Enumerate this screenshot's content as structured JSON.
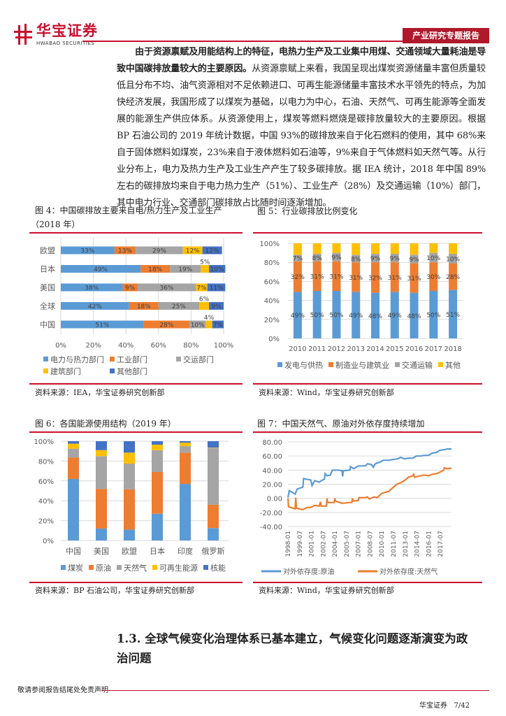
{
  "header": {
    "logo_cn": "华宝证券",
    "logo_en": "HWABAO SECURITIES",
    "report_type": "产业研究专题报告"
  },
  "body": {
    "bold_lead": "由于资源禀赋及用能结构上的特征，电热力生产及工业集中用煤、交通领域大量耗油是导致中国碳排放量较大的主要原因。",
    "paragraph": "从资源禀赋上来看，我国呈现出煤炭资源储量丰富但质量较低且分布不均、油气资源相对不足依赖进口、可再生能源储量丰富技术水平领先的特点，为加快经济发展，我国形成了以煤炭为基础，以电力为中心，石油、天然气、可再生能源等全面发展的能源生产供应体系。从资源使用上，煤炭等燃料燃烧是碳排放量较大的主要原因。根据 BP 石油公司的 2019 年统计数据，中国 93%的碳排放来自于化石燃料的使用，其中 68%来自于固体燃料如煤炭，23%来自于液体燃料如石油等，9%来自于气体燃料如天然气等。从行业分布上，电力及热力生产及工业生产产生了较多碳排放。据 IEA 统计，2018 年中国 89%左右的碳排放均来自于电力热力生产（51%）、工业生产（28%）及交通运输（10%）部门，其中电力行业、交通部门碳排放占比随时间逐渐增加。"
  },
  "figures": {
    "fig4": {
      "title_line1": "图  4：中国碳排放主要来自电/热力生产及工业生产",
      "title_line2": "（2018 年）",
      "source": "资料来源：IEA，华宝证券研究创新部"
    },
    "fig5": {
      "title": "图 5：行业碳排放比例变化",
      "source": "资料来源：Wind，华宝证券研究创新部"
    },
    "fig6": {
      "title": "图 6：各国能源使用结构（2019 年）",
      "source": "资料来源：BP 石油公司，华宝证券研究创新部"
    },
    "fig7": {
      "title": "图 7：中国天然气、原油对外依存度持续增加",
      "source": "资料来源：Wind，华宝证券研究创新部"
    }
  },
  "chart_data": [
    {
      "type": "bar",
      "orientation": "horizontal",
      "stacked": true,
      "categories": [
        "欧盟",
        "日本",
        "美国",
        "全球",
        "中国"
      ],
      "xlim": [
        0,
        100
      ],
      "xticks": [
        "0%",
        "20%",
        "40%",
        "60%",
        "80%",
        "100%"
      ],
      "legend_position": "bottom",
      "grid": true,
      "series": [
        {
          "name": "电力与热力部门",
          "color": "#5b9bd5",
          "values": [
            33,
            49,
            38,
            42,
            51
          ]
        },
        {
          "name": "工业部门",
          "color": "#ed7d31",
          "values": [
            13,
            18,
            9,
            18,
            28
          ]
        },
        {
          "name": "交运部门",
          "color": "#a5a5a5",
          "values": [
            29,
            19,
            36,
            25,
            10
          ]
        },
        {
          "name": "建筑部门",
          "color": "#ffc000",
          "values": [
            12,
            5,
            7,
            6,
            4
          ]
        },
        {
          "name": "其他部门",
          "color": "#4472c4",
          "values": [
            12,
            10,
            11,
            9,
            7
          ]
        }
      ]
    },
    {
      "type": "bar",
      "stacked": true,
      "categories": [
        "2010",
        "2011",
        "2012",
        "2013",
        "2014",
        "2015",
        "2016",
        "2017",
        "2018"
      ],
      "ylim": [
        0,
        100
      ],
      "yticks": [
        "0%",
        "20%",
        "40%",
        "60%",
        "80%",
        "100%"
      ],
      "legend_position": "bottom",
      "grid": true,
      "series": [
        {
          "name": "发电与供热",
          "color": "#5b9bd5",
          "values": [
            49,
            50,
            50,
            49,
            48,
            49,
            48,
            50,
            51
          ],
          "labeled": true
        },
        {
          "name": "制造业与建筑业",
          "color": "#ed7d31",
          "values": [
            32,
            31,
            31,
            31,
            32,
            31,
            31,
            30,
            28
          ],
          "labeled": true
        },
        {
          "name": "交通运输",
          "color": "#a5a5a5",
          "values": [
            7,
            8,
            9,
            8,
            9,
            9,
            9,
            10,
            10
          ],
          "labeled": true
        },
        {
          "name": "其他",
          "color": "#ffc000",
          "values": [
            12,
            11,
            10,
            12,
            11,
            11,
            12,
            10,
            11
          ],
          "labeled": false
        }
      ]
    },
    {
      "type": "bar",
      "stacked": true,
      "categories": [
        "中国",
        "美国",
        "欧盟",
        "日本",
        "印度",
        "俄罗斯"
      ],
      "ylim": [
        0,
        100
      ],
      "yticks": [
        "0%",
        "20%",
        "40%",
        "60%",
        "80%",
        "100%"
      ],
      "legend_position": "bottom",
      "grid": true,
      "series": [
        {
          "name": "煤炭",
          "color": "#5b9bd5",
          "values": [
            62,
            12,
            11,
            27,
            57,
            12.5
          ]
        },
        {
          "name": "原油",
          "color": "#ed7d31",
          "values": [
            21.5,
            40,
            40.5,
            42,
            31.5,
            23.5
          ]
        },
        {
          "name": "天然气",
          "color": "#a5a5a5",
          "values": [
            9,
            33,
            26,
            22,
            6.5,
            57
          ]
        },
        {
          "name": "可再生能源",
          "color": "#ffc000",
          "values": [
            5,
            6,
            11,
            5.5,
            3.5,
            0.5
          ]
        },
        {
          "name": "核能",
          "color": "#4472c4",
          "values": [
            2.5,
            9,
            11.5,
            3.5,
            1.5,
            6.5
          ]
        }
      ]
    },
    {
      "type": "line",
      "ylim": [
        -40,
        80
      ],
      "yticks": [
        "80.00",
        "60.00",
        "40.00",
        "20.00",
        "0.00",
        "-20.00",
        "-40.00"
      ],
      "xlim": [
        "1998-01",
        "2018-12"
      ],
      "xticks": [
        "1998-01",
        "1999-07",
        "2001-01",
        "2002-07",
        "2004-01",
        "2005-07",
        "2007-01",
        "2008-07",
        "2010-01",
        "2011-07",
        "2013-01",
        "2014-07",
        "2016-01",
        "2017-07"
      ],
      "legend_position": "bottom",
      "grid": true,
      "series": [
        {
          "name": "对外依存度:原油",
          "color": "#5b9bd5",
          "points": [
            [
              "1998-01",
              1
            ],
            [
              "1998-03",
              11
            ],
            [
              "1998-12",
              6
            ],
            [
              "1999-03",
              13
            ],
            [
              "1999-12",
              16
            ],
            [
              "2000-01",
              28
            ],
            [
              "2000-06",
              27
            ],
            [
              "2000-12",
              26
            ],
            [
              "2001-02",
              18
            ],
            [
              "2001-06",
              25
            ],
            [
              "2002-01",
              23
            ],
            [
              "2002-06",
              26
            ],
            [
              "2002-09",
              27
            ],
            [
              "2002-10",
              35
            ],
            [
              "2003-01",
              32
            ],
            [
              "2003-06",
              33
            ],
            [
              "2003-09",
              40
            ],
            [
              "2004-06",
              40
            ],
            [
              "2004-12",
              39
            ],
            [
              "2005-01",
              31
            ],
            [
              "2005-02",
              39
            ],
            [
              "2005-12",
              40
            ],
            [
              "2006-01",
              45
            ],
            [
              "2006-06",
              42
            ],
            [
              "2007-01",
              46
            ],
            [
              "2007-12",
              46
            ],
            [
              "2008-03",
              49
            ],
            [
              "2008-09",
              48
            ],
            [
              "2008-12",
              44
            ],
            [
              "2009-03",
              49
            ],
            [
              "2009-12",
              52
            ],
            [
              "2010-03",
              54
            ],
            [
              "2010-12",
              54
            ],
            [
              "2011-06",
              55
            ],
            [
              "2012-01",
              56
            ],
            [
              "2012-06",
              58
            ],
            [
              "2012-12",
              56
            ],
            [
              "2013-06",
              57
            ],
            [
              "2014-01",
              57
            ],
            [
              "2014-06",
              60
            ],
            [
              "2015-01",
              60
            ],
            [
              "2015-06",
              61
            ],
            [
              "2016-01",
              61
            ],
            [
              "2016-06",
              64
            ],
            [
              "2017-01",
              65
            ],
            [
              "2017-06",
              68
            ],
            [
              "2018-01",
              69
            ],
            [
              "2018-06",
              70
            ],
            [
              "2018-12",
              70
            ]
          ]
        },
        {
          "name": "对外依存度:天然气",
          "color": "#ed7d31",
          "points": [
            [
              "1998-01",
              0
            ],
            [
              "1998-02",
              -12
            ],
            [
              "1998-12",
              -15
            ],
            [
              "1999-01",
              1
            ],
            [
              "1999-02",
              -14
            ],
            [
              "1999-12",
              -16
            ],
            [
              "2000-06",
              -13
            ],
            [
              "2000-12",
              -13
            ],
            [
              "2001-06",
              -10
            ],
            [
              "2002-01",
              -11
            ],
            [
              "2002-03",
              -5
            ],
            [
              "2002-04",
              -11
            ],
            [
              "2002-12",
              -11
            ],
            [
              "2003-01",
              0
            ],
            [
              "2003-02",
              -6
            ],
            [
              "2003-12",
              -6
            ],
            [
              "2004-01",
              0
            ],
            [
              "2004-02",
              -4
            ],
            [
              "2004-12",
              -7
            ],
            [
              "2005-12",
              -6
            ],
            [
              "2006-03",
              -6
            ],
            [
              "2006-04",
              0
            ],
            [
              "2006-05",
              -4
            ],
            [
              "2007-01",
              -3
            ],
            [
              "2007-02",
              1
            ],
            [
              "2007-12",
              1
            ],
            [
              "2008-03",
              2
            ],
            [
              "2008-06",
              -1
            ],
            [
              "2009-01",
              2
            ],
            [
              "2009-06",
              1
            ],
            [
              "2010-01",
              7
            ],
            [
              "2010-12",
              10
            ],
            [
              "2011-06",
              15
            ],
            [
              "2011-12",
              20
            ],
            [
              "2012-06",
              22
            ],
            [
              "2013-01",
              26
            ],
            [
              "2013-06",
              30
            ],
            [
              "2014-01",
              32
            ],
            [
              "2014-02",
              35
            ],
            [
              "2014-03",
              30
            ],
            [
              "2015-01",
              32
            ],
            [
              "2015-06",
              33
            ],
            [
              "2016-01",
              32
            ],
            [
              "2016-06",
              34
            ],
            [
              "2017-01",
              35
            ],
            [
              "2017-06",
              37
            ],
            [
              "2017-12",
              40
            ],
            [
              "2018-01",
              43
            ],
            [
              "2018-06",
              42
            ],
            [
              "2018-12",
              43
            ]
          ]
        }
      ]
    }
  ],
  "section": {
    "heading_line1": "1.3. 全球气候变化治理体系已基本建立，气候变化问题逐渐演变为政",
    "heading_line2": "治问题"
  },
  "footer": {
    "disclaimer": "敬请参阅报告结尾处免责声明",
    "company": "华宝证券",
    "page": "7/42"
  }
}
